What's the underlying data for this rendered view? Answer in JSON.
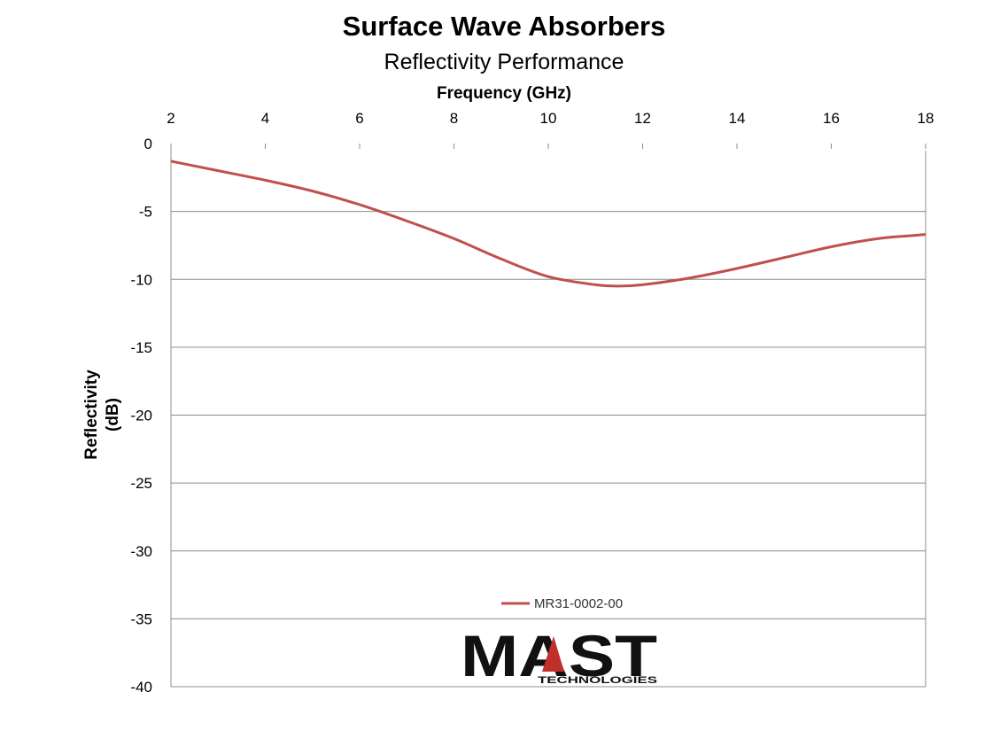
{
  "chart_data": {
    "type": "line",
    "title": "Surface Wave Absorbers",
    "subtitle": "Reflectivity Performance",
    "xlabel": "Frequency (GHz)",
    "ylabel_line1": "Reflectivity",
    "ylabel_line2": "(dB)",
    "xlim": [
      2,
      18
    ],
    "ylim": [
      -40,
      0
    ],
    "x_ticks": [
      "2",
      "4",
      "6",
      "8",
      "10",
      "12",
      "14",
      "16",
      "18"
    ],
    "y_ticks": [
      "0",
      "-5",
      "-10",
      "-15",
      "-20",
      "-25",
      "-30",
      "-35",
      "-40"
    ],
    "x_axis_position": "top",
    "grid": "horizontal",
    "legend_position": "bottom-center",
    "series": [
      {
        "name": "MR31-0002-00",
        "color": "#c0504d",
        "x": [
          2,
          3,
          4,
          5,
          6,
          7,
          8,
          9,
          10,
          11,
          11.5,
          12,
          13,
          14,
          15,
          16,
          17,
          18
        ],
        "y": [
          -1.3,
          -2.0,
          -2.7,
          -3.5,
          -4.5,
          -5.7,
          -7.0,
          -8.5,
          -9.8,
          -10.4,
          -10.5,
          -10.4,
          -9.9,
          -9.2,
          -8.4,
          -7.6,
          -7.0,
          -6.7
        ]
      }
    ]
  },
  "logo": {
    "main": "MAST",
    "sub": "TECHNOLOGIES",
    "accent_color": "#c0302a"
  }
}
